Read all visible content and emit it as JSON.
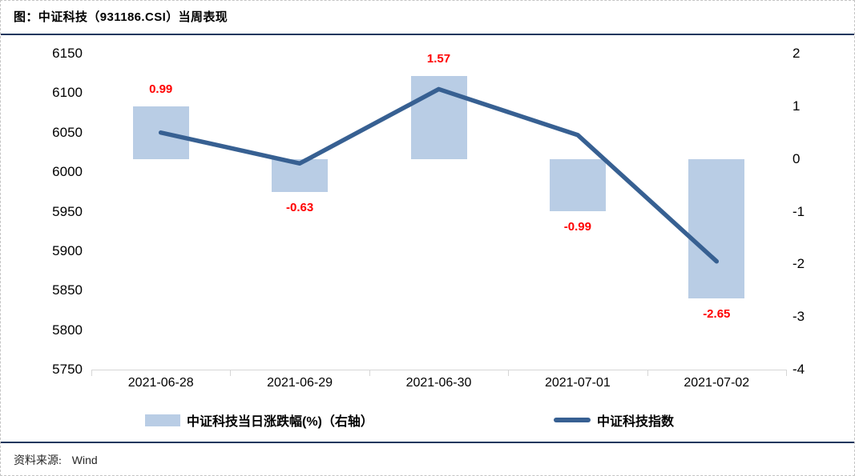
{
  "title": "图：中证科技（931186.CSI）当周表现",
  "footer": {
    "source_label": "资料来源:",
    "source_value": "Wind"
  },
  "legend": [
    {
      "label": "中证科技当日涨跌幅(%)（右轴）",
      "swatch": "bar-swatch"
    },
    {
      "label": "中证科技指数",
      "swatch": "line-swatch"
    }
  ],
  "colors": {
    "bar": "#b9cde5",
    "line": "#376092",
    "data_label": "#ff0000",
    "rule": "#17375e",
    "axis": "#d6d6d6",
    "text": "#000000"
  },
  "chart_data": {
    "type": "bar+line combo",
    "title": "中证科技（931186.CSI）当周表现",
    "categories": [
      "2021-06-28",
      "2021-06-29",
      "2021-06-30",
      "2021-07-01",
      "2021-07-02"
    ],
    "series": [
      {
        "name": "中证科技当日涨跌幅(%)（右轴）",
        "type": "bar",
        "axis": "right",
        "values": [
          0.99,
          -0.63,
          1.57,
          -0.99,
          -2.65
        ],
        "data_labels": [
          "0.99",
          "-0.63",
          "1.57",
          "-0.99",
          "-2.65"
        ]
      },
      {
        "name": "中证科技指数",
        "type": "line",
        "axis": "left",
        "values": [
          6050,
          6011,
          6105,
          6047,
          5887
        ]
      }
    ],
    "left_axis": {
      "min": 5750,
      "max": 6150,
      "step": 50,
      "ticks": [
        "6150",
        "6100",
        "6050",
        "6000",
        "5950",
        "5900",
        "5850",
        "5800",
        "5750"
      ]
    },
    "right_axis": {
      "min": -4,
      "max": 2,
      "step": 1,
      "ticks": [
        "2",
        "1",
        "0",
        "-1",
        "-2",
        "-3",
        "-4"
      ]
    },
    "grid": false,
    "legend_position": "bottom"
  }
}
